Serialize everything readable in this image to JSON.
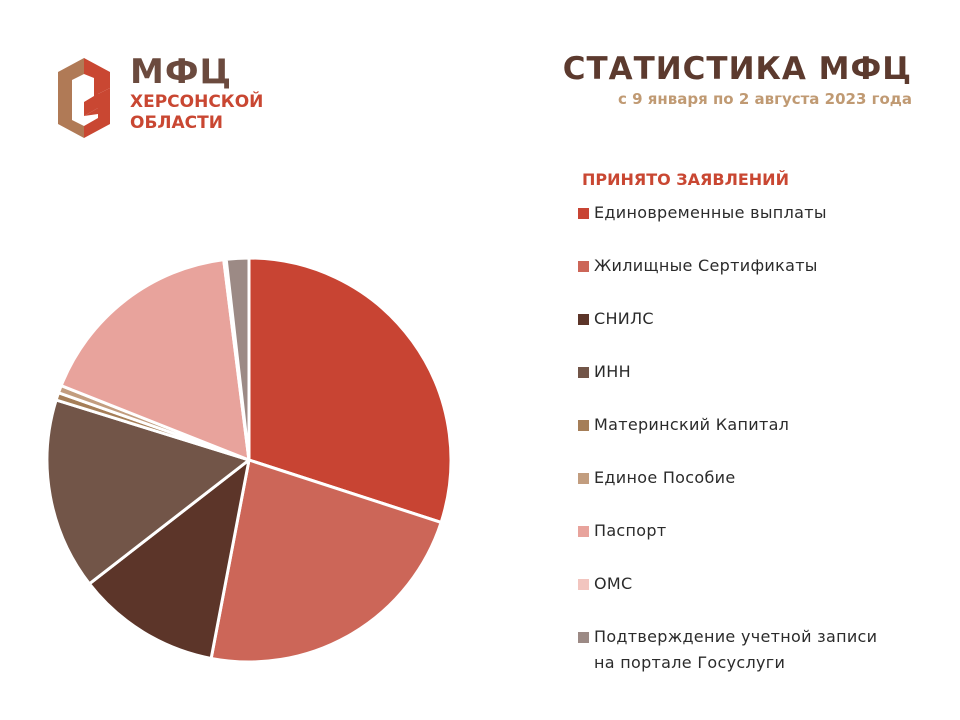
{
  "logo": {
    "title": "МФЦ",
    "line1": "ХЕРСОНСКОЙ",
    "line2": "ОБЛАСТИ"
  },
  "heading": {
    "title": "СТАТИСТИКА МФЦ",
    "subtitle": "с 9 января по 2 августа 2023 года"
  },
  "colors": {
    "brand_brown": "#6b4a3e",
    "brand_red": "#c94732",
    "brand_tan": "#c09a73"
  },
  "chart_data": {
    "type": "pie",
    "title": "",
    "legend_title": "ПРИНЯТО ЗАЯВЛЕНИЙ",
    "legend_position": "right",
    "slices": [
      {
        "label": "Единовременные выплаты",
        "value": 30.0,
        "color": "#c84433"
      },
      {
        "label": "Жилищные Сертификаты",
        "value": 23.0,
        "color": "#cc6658"
      },
      {
        "label": "СНИЛС",
        "value": 11.5,
        "color": "#5c3529"
      },
      {
        "label": "ИНН",
        "value": 15.3,
        "color": "#725548"
      },
      {
        "label": "Материнский Капитал",
        "value": 0.6,
        "color": "#a57e58"
      },
      {
        "label": "Единое Пособие",
        "value": 0.6,
        "color": "#c29d7f"
      },
      {
        "label": "Паспорт",
        "value": 17.0,
        "color": "#e8a39c"
      },
      {
        "label": "ОМС",
        "value": 0.2,
        "color": "#f2c5bf"
      },
      {
        "label": "Подтверждение учетной записи на портале Госуслуги",
        "label_lines": [
          "Подтверждение учетной записи",
          "на портале Госуслуги"
        ],
        "value": 1.8,
        "color": "#9c8a85"
      }
    ]
  }
}
